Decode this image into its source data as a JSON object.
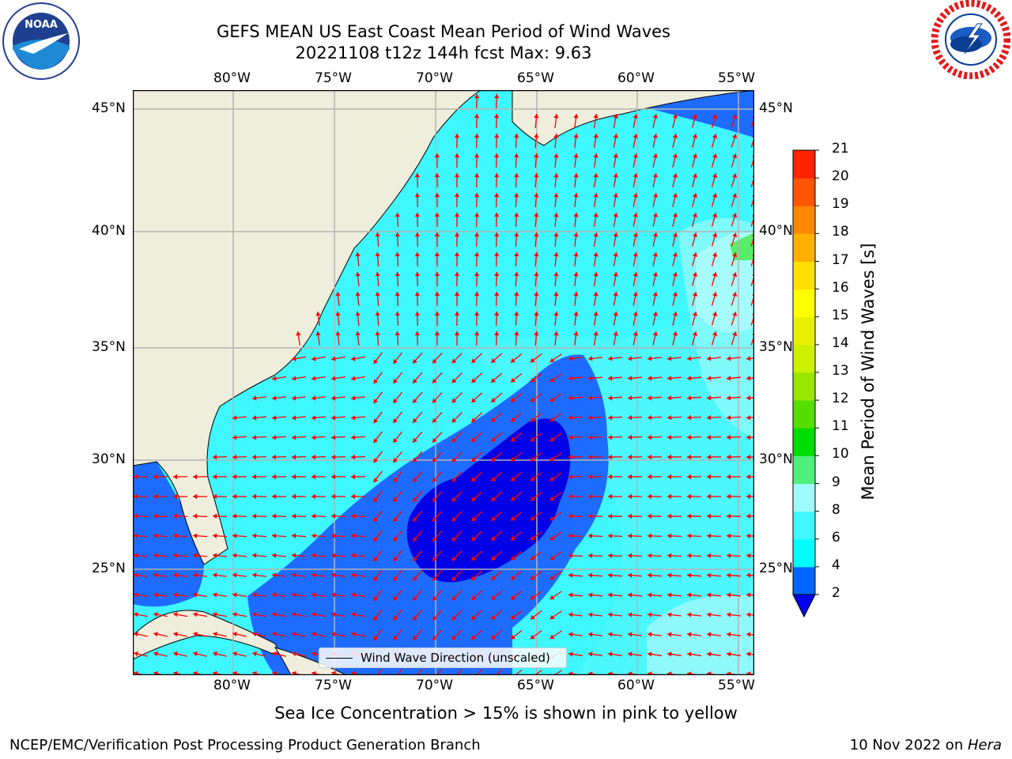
{
  "title": {
    "line1": "GEFS MEAN US East Coast Mean Period of Wind Waves",
    "line2": "20221108 t12z 144h fcst   Max: 9.63"
  },
  "logos": {
    "left": {
      "text": "NOAA",
      "ring_text": "NATIONAL OCEANIC AND ATMOSPHERIC ADMINISTRATION · U.S. DEPARTMENT OF COMMERCE"
    },
    "right": {
      "ring_text": "NATIONAL WEATHER SERVICE"
    }
  },
  "map": {
    "lon_labels": [
      "80°W",
      "75°W",
      "70°W",
      "65°W",
      "60°W",
      "55°W"
    ],
    "lat_labels": [
      "45°N",
      "40°N",
      "35°N",
      "30°N",
      "25°N"
    ],
    "lon_range": [
      -85,
      -54.5
    ],
    "lat_range": [
      20.5,
      46.5
    ],
    "colors": {
      "land": "#efeedc",
      "ocean_2_4": "#1e6cff",
      "ocean_lt2": "#0000e6",
      "ocean_4_6": "#00ffff",
      "ocean_6_8": "#3ef5fb",
      "ocean_8_9": "#9cfbfb",
      "ocean_9_10": "#55ee66",
      "arrow": "#ff0000",
      "grid": "#b4b4b4"
    }
  },
  "legend": {
    "label": "Wind Wave Direction (unscaled)"
  },
  "colorbar": {
    "label": "Mean Period of Wind Waves [s]",
    "ticks": [
      "2",
      "4",
      "6",
      "8",
      "9",
      "10",
      "11",
      "12",
      "13",
      "14",
      "15",
      "16",
      "17",
      "18",
      "19",
      "20",
      "21"
    ],
    "colors": [
      "#0066ff",
      "#00ffff",
      "#3ff7ff",
      "#9ffbfb",
      "#4cf07a",
      "#00dd00",
      "#55dd00",
      "#99e600",
      "#ccf000",
      "#e8f000",
      "#ffff00",
      "#ffdf00",
      "#ffb000",
      "#ff8800",
      "#ff5500",
      "#ff2200",
      "#ff0000"
    ],
    "extend_color": "#0000ee"
  },
  "footer": {
    "sea_ice": "Sea Ice Concentration > 15% is shown in pink to yellow",
    "credit": "NCEP/EMC/Verification Post Processing Product Generation Branch",
    "date": "10 Nov 2022 on ",
    "host": "Hera"
  }
}
